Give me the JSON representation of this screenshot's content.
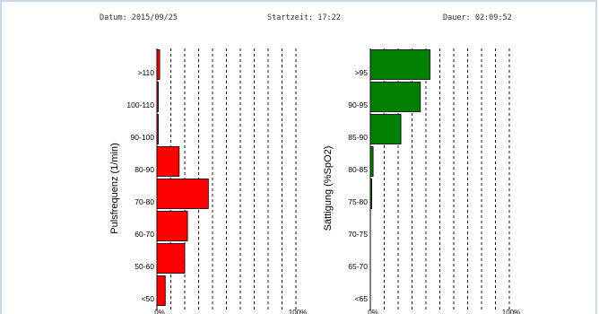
{
  "header": {
    "datum": "Datum: 2015/09/25",
    "startzeit": "Startzeit: 17:22",
    "dauer": "Dauer: 02:09:52"
  },
  "chart_data": [
    {
      "type": "bar",
      "orientation": "horizontal",
      "ylabel": "Pulsfrequenz (1/min)",
      "categories": [
        "<50",
        "50-60",
        "60-70",
        "70-80",
        "80-90",
        "90-100",
        "100-110",
        ">110"
      ],
      "values": [
        6,
        20,
        22,
        37,
        16,
        1,
        1,
        2
      ],
      "xlim": [
        0,
        100
      ],
      "x_tick_labels": [
        "0%",
        "100%"
      ],
      "color": "#ff0000",
      "grid": "vertical dashed"
    },
    {
      "type": "bar",
      "orientation": "horizontal",
      "ylabel": "Sättigung (%SpO2)",
      "categories": [
        "<65",
        "65-70",
        "70-75",
        "75-80",
        "80-85",
        "85-90",
        "90-95",
        ">95"
      ],
      "values": [
        0,
        0,
        0,
        1,
        2,
        22,
        36,
        43
      ],
      "xlim": [
        0,
        100
      ],
      "x_tick_labels": [
        "0%",
        "100%"
      ],
      "color": "#008000",
      "grid": "vertical dashed"
    }
  ]
}
